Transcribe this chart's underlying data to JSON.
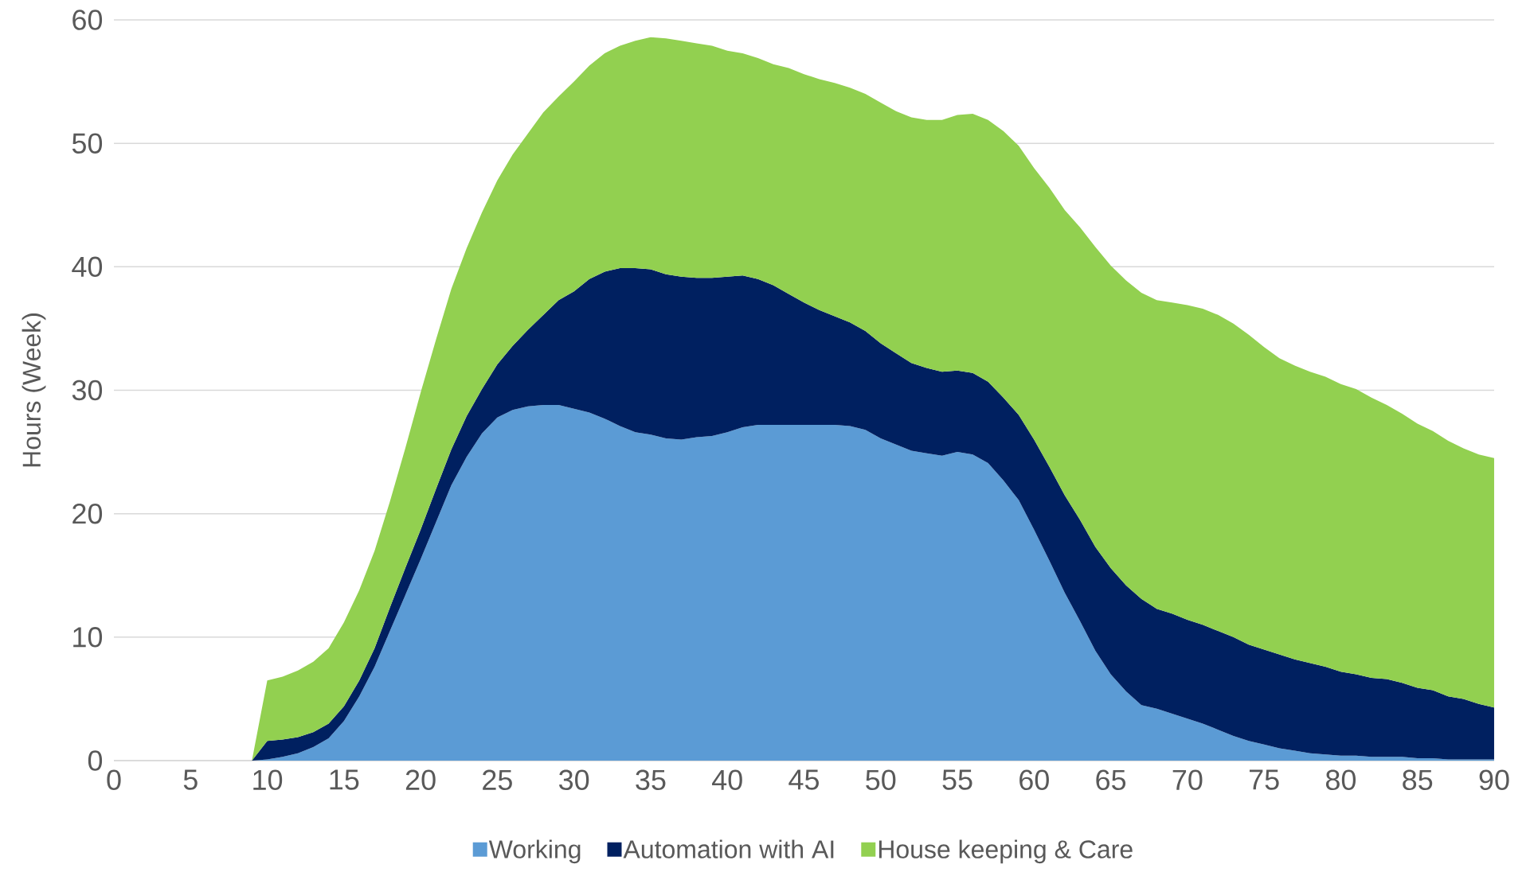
{
  "chart_data": {
    "type": "area",
    "stacked": true,
    "ylabel": "Hours (Week)",
    "grid": "y",
    "legend": "bottom",
    "xlim": [
      0,
      90
    ],
    "ylim": [
      0,
      60
    ],
    "xticks": [
      0,
      5,
      10,
      15,
      20,
      25,
      30,
      35,
      40,
      45,
      50,
      55,
      60,
      65,
      70,
      75,
      80,
      85,
      90
    ],
    "yticks": [
      0,
      10,
      20,
      30,
      40,
      50,
      60
    ],
    "x": [
      0,
      1,
      2,
      3,
      4,
      5,
      6,
      7,
      8,
      9,
      10,
      11,
      12,
      13,
      14,
      15,
      16,
      17,
      18,
      19,
      20,
      21,
      22,
      23,
      24,
      25,
      26,
      27,
      28,
      29,
      30,
      31,
      32,
      33,
      34,
      35,
      36,
      37,
      38,
      39,
      40,
      41,
      42,
      43,
      44,
      45,
      46,
      47,
      48,
      49,
      50,
      51,
      52,
      53,
      54,
      55,
      56,
      57,
      58,
      59,
      60,
      61,
      62,
      63,
      64,
      65,
      66,
      67,
      68,
      69,
      70,
      71,
      72,
      73,
      74,
      75,
      76,
      77,
      78,
      79,
      80,
      81,
      82,
      83,
      84,
      85,
      86,
      87,
      88,
      89,
      90
    ],
    "series": [
      {
        "name": "Working",
        "color": "#5b9bd5",
        "values": [
          0,
          0,
          0,
          0,
          0,
          0,
          0,
          0,
          0,
          0,
          0.1,
          0.3,
          0.6,
          1.1,
          1.8,
          3.2,
          5.2,
          7.6,
          10.5,
          13.4,
          16.3,
          19.3,
          22.3,
          24.6,
          26.5,
          27.8,
          28.4,
          28.7,
          28.8,
          28.8,
          28.5,
          28.2,
          27.7,
          27.1,
          26.6,
          26.4,
          26.1,
          26.0,
          26.2,
          26.3,
          26.6,
          27.0,
          27.2,
          27.2,
          27.2,
          27.2,
          27.2,
          27.2,
          27.1,
          26.8,
          26.1,
          25.6,
          25.1,
          24.9,
          24.7,
          25.0,
          24.8,
          24.1,
          22.7,
          21.1,
          18.7,
          16.2,
          13.6,
          11.3,
          8.9,
          7.0,
          5.6,
          4.5,
          4.2,
          3.8,
          3.4,
          3.0,
          2.5,
          2.0,
          1.6,
          1.3,
          1.0,
          0.8,
          0.6,
          0.5,
          0.4,
          0.4,
          0.3,
          0.3,
          0.3,
          0.2,
          0.2,
          0.1,
          0.1,
          0.1,
          0.1
        ]
      },
      {
        "name": "Automation with AI",
        "color": "#002060",
        "values": [
          0,
          0,
          0,
          0,
          0,
          0,
          0,
          0,
          0,
          0,
          1.5,
          1.4,
          1.3,
          1.2,
          1.2,
          1.2,
          1.3,
          1.5,
          1.9,
          2.2,
          2.4,
          2.7,
          2.9,
          3.3,
          3.6,
          4.3,
          5.2,
          6.2,
          7.3,
          8.5,
          9.5,
          10.8,
          11.9,
          12.8,
          13.3,
          13.4,
          13.3,
          13.2,
          12.9,
          12.8,
          12.6,
          12.3,
          11.8,
          11.3,
          10.6,
          9.9,
          9.3,
          8.8,
          8.4,
          8.0,
          7.7,
          7.4,
          7.1,
          6.9,
          6.8,
          6.6,
          6.6,
          6.6,
          6.7,
          6.9,
          7.3,
          7.6,
          7.9,
          8.2,
          8.4,
          8.6,
          8.6,
          8.6,
          8.1,
          8.1,
          8.0,
          8.0,
          8.0,
          8.0,
          7.8,
          7.7,
          7.6,
          7.4,
          7.3,
          7.1,
          6.8,
          6.6,
          6.4,
          6.3,
          6.0,
          5.7,
          5.5,
          5.1,
          4.9,
          4.5,
          4.2
        ]
      },
      {
        "name": "House keeping & Care",
        "color": "#92d050",
        "values": [
          0,
          0,
          0,
          0,
          0,
          0,
          0,
          0,
          0,
          0,
          4.9,
          5.1,
          5.4,
          5.7,
          6.1,
          6.8,
          7.3,
          7.9,
          8.6,
          9.7,
          11.1,
          12.1,
          13.0,
          13.6,
          14.3,
          14.9,
          15.5,
          15.9,
          16.4,
          16.5,
          17.0,
          17.3,
          17.7,
          18.0,
          18.4,
          18.8,
          19.1,
          19.1,
          19.0,
          18.8,
          18.3,
          18.0,
          17.9,
          17.9,
          18.3,
          18.5,
          18.7,
          18.9,
          19.0,
          19.2,
          19.5,
          19.6,
          19.9,
          20.1,
          20.4,
          20.7,
          21.0,
          21.2,
          21.6,
          21.8,
          22.0,
          22.6,
          23.1,
          23.7,
          24.3,
          24.5,
          24.7,
          24.8,
          25.0,
          25.2,
          25.5,
          25.6,
          25.6,
          25.4,
          25.1,
          24.5,
          24.0,
          23.8,
          23.6,
          23.5,
          23.3,
          23.1,
          22.7,
          22.2,
          21.8,
          21.4,
          21.0,
          20.7,
          20.3,
          20.2,
          20.2
        ]
      }
    ]
  }
}
